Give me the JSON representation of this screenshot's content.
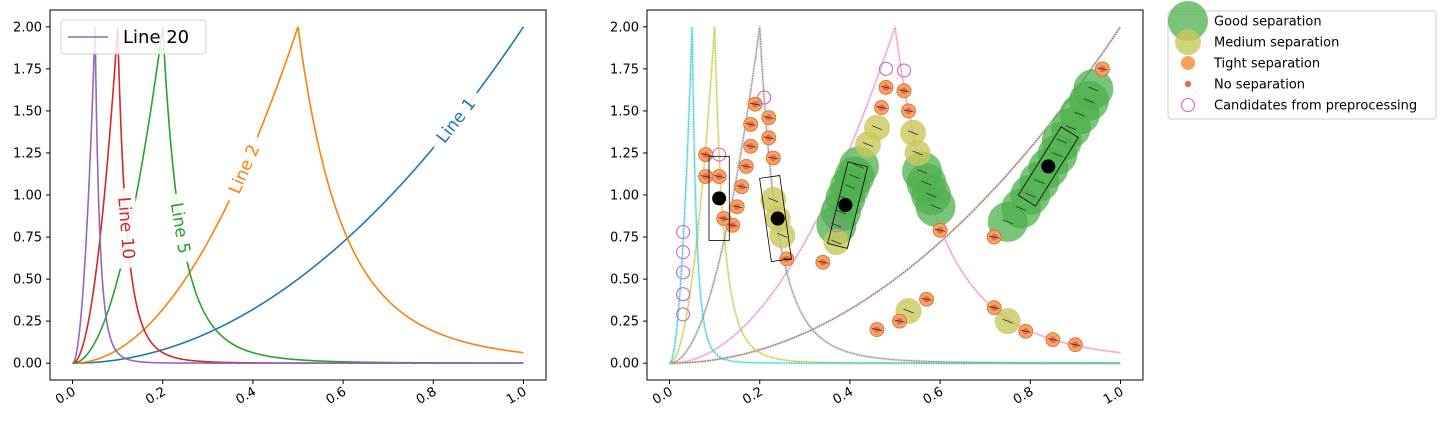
{
  "chart_data": [
    {
      "type": "line",
      "title": "",
      "xlabel": "",
      "ylabel": "",
      "xlim": [
        -0.05,
        1.05
      ],
      "ylim": [
        -0.1,
        2.1
      ],
      "x_ticks": [
        "0.0",
        "0.2",
        "0.4",
        "0.6",
        "0.8",
        "1.0"
      ],
      "y_ticks": [
        "0.00",
        "0.25",
        "0.50",
        "0.75",
        "1.00",
        "1.25",
        "1.50",
        "1.75",
        "2.00"
      ],
      "grid": false,
      "legend": {
        "placement": "upper-left",
        "entries": [
          "Line 20"
        ]
      },
      "series": [
        {
          "name": "Line 1",
          "peak": 1.0,
          "color": "#1f77b4",
          "label": "Line 1",
          "label_at": 0.85
        },
        {
          "name": "Line 2",
          "peak": 0.5,
          "color": "#ff7f0e",
          "label": "Line 2",
          "label_at": 0.38
        },
        {
          "name": "Line 5",
          "peak": 0.2,
          "color": "#2ca02c",
          "label": "Line 5",
          "label_at": 0.24
        },
        {
          "name": "Line 10",
          "peak": 0.1,
          "color": "#d62728",
          "label": "Line 10",
          "label_at": 0.12
        },
        {
          "name": "Line 20",
          "peak": 0.05,
          "color": "#9467bd",
          "label": "",
          "label_at": null
        }
      ]
    },
    {
      "type": "line",
      "title": "",
      "xlabel": "",
      "ylabel": "",
      "xlim": [
        -0.05,
        1.05
      ],
      "ylim": [
        -0.1,
        2.1
      ],
      "x_ticks": [
        "0.0",
        "0.2",
        "0.4",
        "0.6",
        "0.8",
        "1.0"
      ],
      "y_ticks": [
        "0.00",
        "0.25",
        "0.50",
        "0.75",
        "1.00",
        "1.25",
        "1.50",
        "1.75",
        "2.00"
      ],
      "grid": false,
      "legend": {
        "placement": "outside-right",
        "entries": [
          "Good separation",
          "Medium separation",
          "Tight separation",
          "No separation",
          "Candidates from preprocessing"
        ]
      },
      "colors": {
        "good": "#4cb04c",
        "medium": "#c8c85a",
        "tight": "#f7a35c",
        "none": "#e8685c",
        "candidate": "#cc66cc"
      },
      "series": [
        {
          "name": "",
          "peak": 1.0,
          "color": "#8c564b"
        },
        {
          "name": "",
          "peak": 0.5,
          "color": "#e377c2"
        },
        {
          "name": "",
          "peak": 0.2,
          "color": "#7f7f7f"
        },
        {
          "name": "",
          "peak": 0.1,
          "color": "#bcbd22"
        },
        {
          "name": "",
          "peak": 0.05,
          "color": "#17becf"
        }
      ],
      "points": {
        "good": [
          [
            0.75,
            0.84
          ],
          [
            0.78,
            0.92
          ],
          [
            0.8,
            1.0
          ],
          [
            0.82,
            1.08
          ],
          [
            0.84,
            1.16
          ],
          [
            0.86,
            1.24
          ],
          [
            0.87,
            1.32
          ],
          [
            0.89,
            1.4
          ],
          [
            0.91,
            1.48
          ],
          [
            0.93,
            1.56
          ],
          [
            0.94,
            1.63
          ],
          [
            0.37,
            0.82
          ],
          [
            0.38,
            0.9
          ],
          [
            0.39,
            0.98
          ],
          [
            0.4,
            1.05
          ],
          [
            0.41,
            1.11
          ],
          [
            0.42,
            1.17
          ],
          [
            0.56,
            1.14
          ],
          [
            0.57,
            1.07
          ],
          [
            0.58,
            1.0
          ],
          [
            0.59,
            0.93
          ]
        ],
        "medium": [
          [
            0.54,
            1.37
          ],
          [
            0.55,
            1.25
          ],
          [
            0.53,
            0.31
          ],
          [
            0.75,
            0.25
          ],
          [
            0.46,
            1.4
          ],
          [
            0.44,
            1.3
          ],
          [
            0.37,
            0.72
          ],
          [
            0.23,
            0.97
          ],
          [
            0.24,
            0.86
          ],
          [
            0.25,
            0.76
          ]
        ],
        "tight": [
          [
            0.96,
            1.75
          ],
          [
            0.72,
            0.75
          ],
          [
            0.72,
            0.33
          ],
          [
            0.79,
            0.19
          ],
          [
            0.85,
            0.14
          ],
          [
            0.9,
            0.11
          ],
          [
            0.6,
            0.79
          ],
          [
            0.57,
            0.38
          ],
          [
            0.51,
            0.25
          ],
          [
            0.46,
            0.2
          ],
          [
            0.34,
            0.6
          ],
          [
            0.47,
            1.52
          ],
          [
            0.48,
            1.64
          ],
          [
            0.52,
            1.62
          ],
          [
            0.53,
            1.5
          ],
          [
            0.26,
            0.62
          ],
          [
            0.22,
            1.46
          ],
          [
            0.22,
            1.34
          ],
          [
            0.23,
            1.22
          ],
          [
            0.19,
            1.54
          ],
          [
            0.18,
            1.42
          ],
          [
            0.18,
            1.29
          ],
          [
            0.17,
            1.17
          ],
          [
            0.16,
            1.05
          ],
          [
            0.15,
            0.93
          ],
          [
            0.14,
            0.82
          ],
          [
            0.08,
            1.24
          ],
          [
            0.08,
            1.11
          ],
          [
            0.11,
            1.11
          ],
          [
            0.12,
            0.86
          ]
        ],
        "candidate": [
          [
            0.48,
            1.75
          ],
          [
            0.52,
            1.74
          ],
          [
            0.21,
            1.58
          ],
          [
            0.11,
            1.24
          ],
          [
            0.03,
            0.78
          ],
          [
            0.03,
            0.66
          ],
          [
            0.03,
            0.54
          ],
          [
            0.03,
            0.41
          ],
          [
            0.03,
            0.29
          ],
          [
            0.37,
            0.82
          ],
          [
            0.24,
            0.86
          ]
        ],
        "black": [
          [
            0.11,
            0.98
          ],
          [
            0.24,
            0.86
          ],
          [
            0.39,
            0.94
          ],
          [
            0.84,
            1.17
          ]
        ],
        "boxes": [
          {
            "cx": 0.11,
            "cy": 0.98,
            "w": 0.045,
            "h": 0.5,
            "angle": 0
          },
          {
            "cx": 0.235,
            "cy": 0.86,
            "w": 0.045,
            "h": 0.5,
            "angle": -8
          },
          {
            "cx": 0.395,
            "cy": 0.94,
            "w": 0.045,
            "h": 0.5,
            "angle": 14
          },
          {
            "cx": 0.84,
            "cy": 1.17,
            "w": 0.045,
            "h": 0.48,
            "angle": 32
          }
        ]
      }
    }
  ]
}
